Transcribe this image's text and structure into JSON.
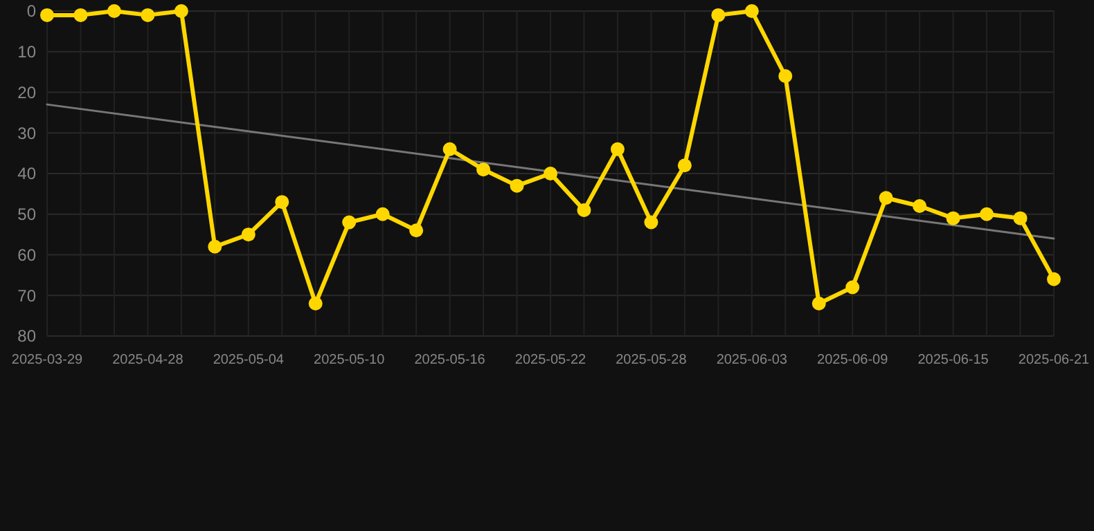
{
  "chart_data": {
    "type": "line",
    "categories": [
      "2025-03-29",
      null,
      null,
      "2025-04-28",
      null,
      null,
      "2025-05-04",
      null,
      null,
      "2025-05-10",
      null,
      null,
      "2025-05-16",
      null,
      null,
      "2025-05-22",
      null,
      null,
      "2025-05-28",
      null,
      null,
      "2025-06-03",
      null,
      null,
      "2025-06-09",
      null,
      null,
      "2025-06-15",
      null,
      null,
      "2025-06-21"
    ],
    "series": [
      {
        "color": "#ffd700",
        "marker": "circle",
        "values": [
          1,
          1,
          0,
          1,
          0,
          58,
          55,
          47,
          72,
          52,
          50,
          54,
          34,
          39,
          43,
          40,
          49,
          34,
          52,
          38,
          1,
          0,
          16,
          72,
          68,
          46,
          48,
          51,
          50,
          51,
          66
        ]
      },
      {
        "type": "line",
        "color": "#777777",
        "marker": "none",
        "values": [
          23,
          null,
          null,
          null,
          null,
          null,
          null,
          null,
          null,
          null,
          null,
          null,
          null,
          null,
          null,
          null,
          null,
          null,
          null,
          null,
          null,
          null,
          null,
          null,
          null,
          null,
          null,
          null,
          null,
          null,
          56
        ]
      }
    ],
    "ylim": [
      80,
      0
    ],
    "yticks": [
      0,
      10,
      20,
      30,
      40,
      50,
      60,
      70,
      80
    ],
    "grid": true
  }
}
